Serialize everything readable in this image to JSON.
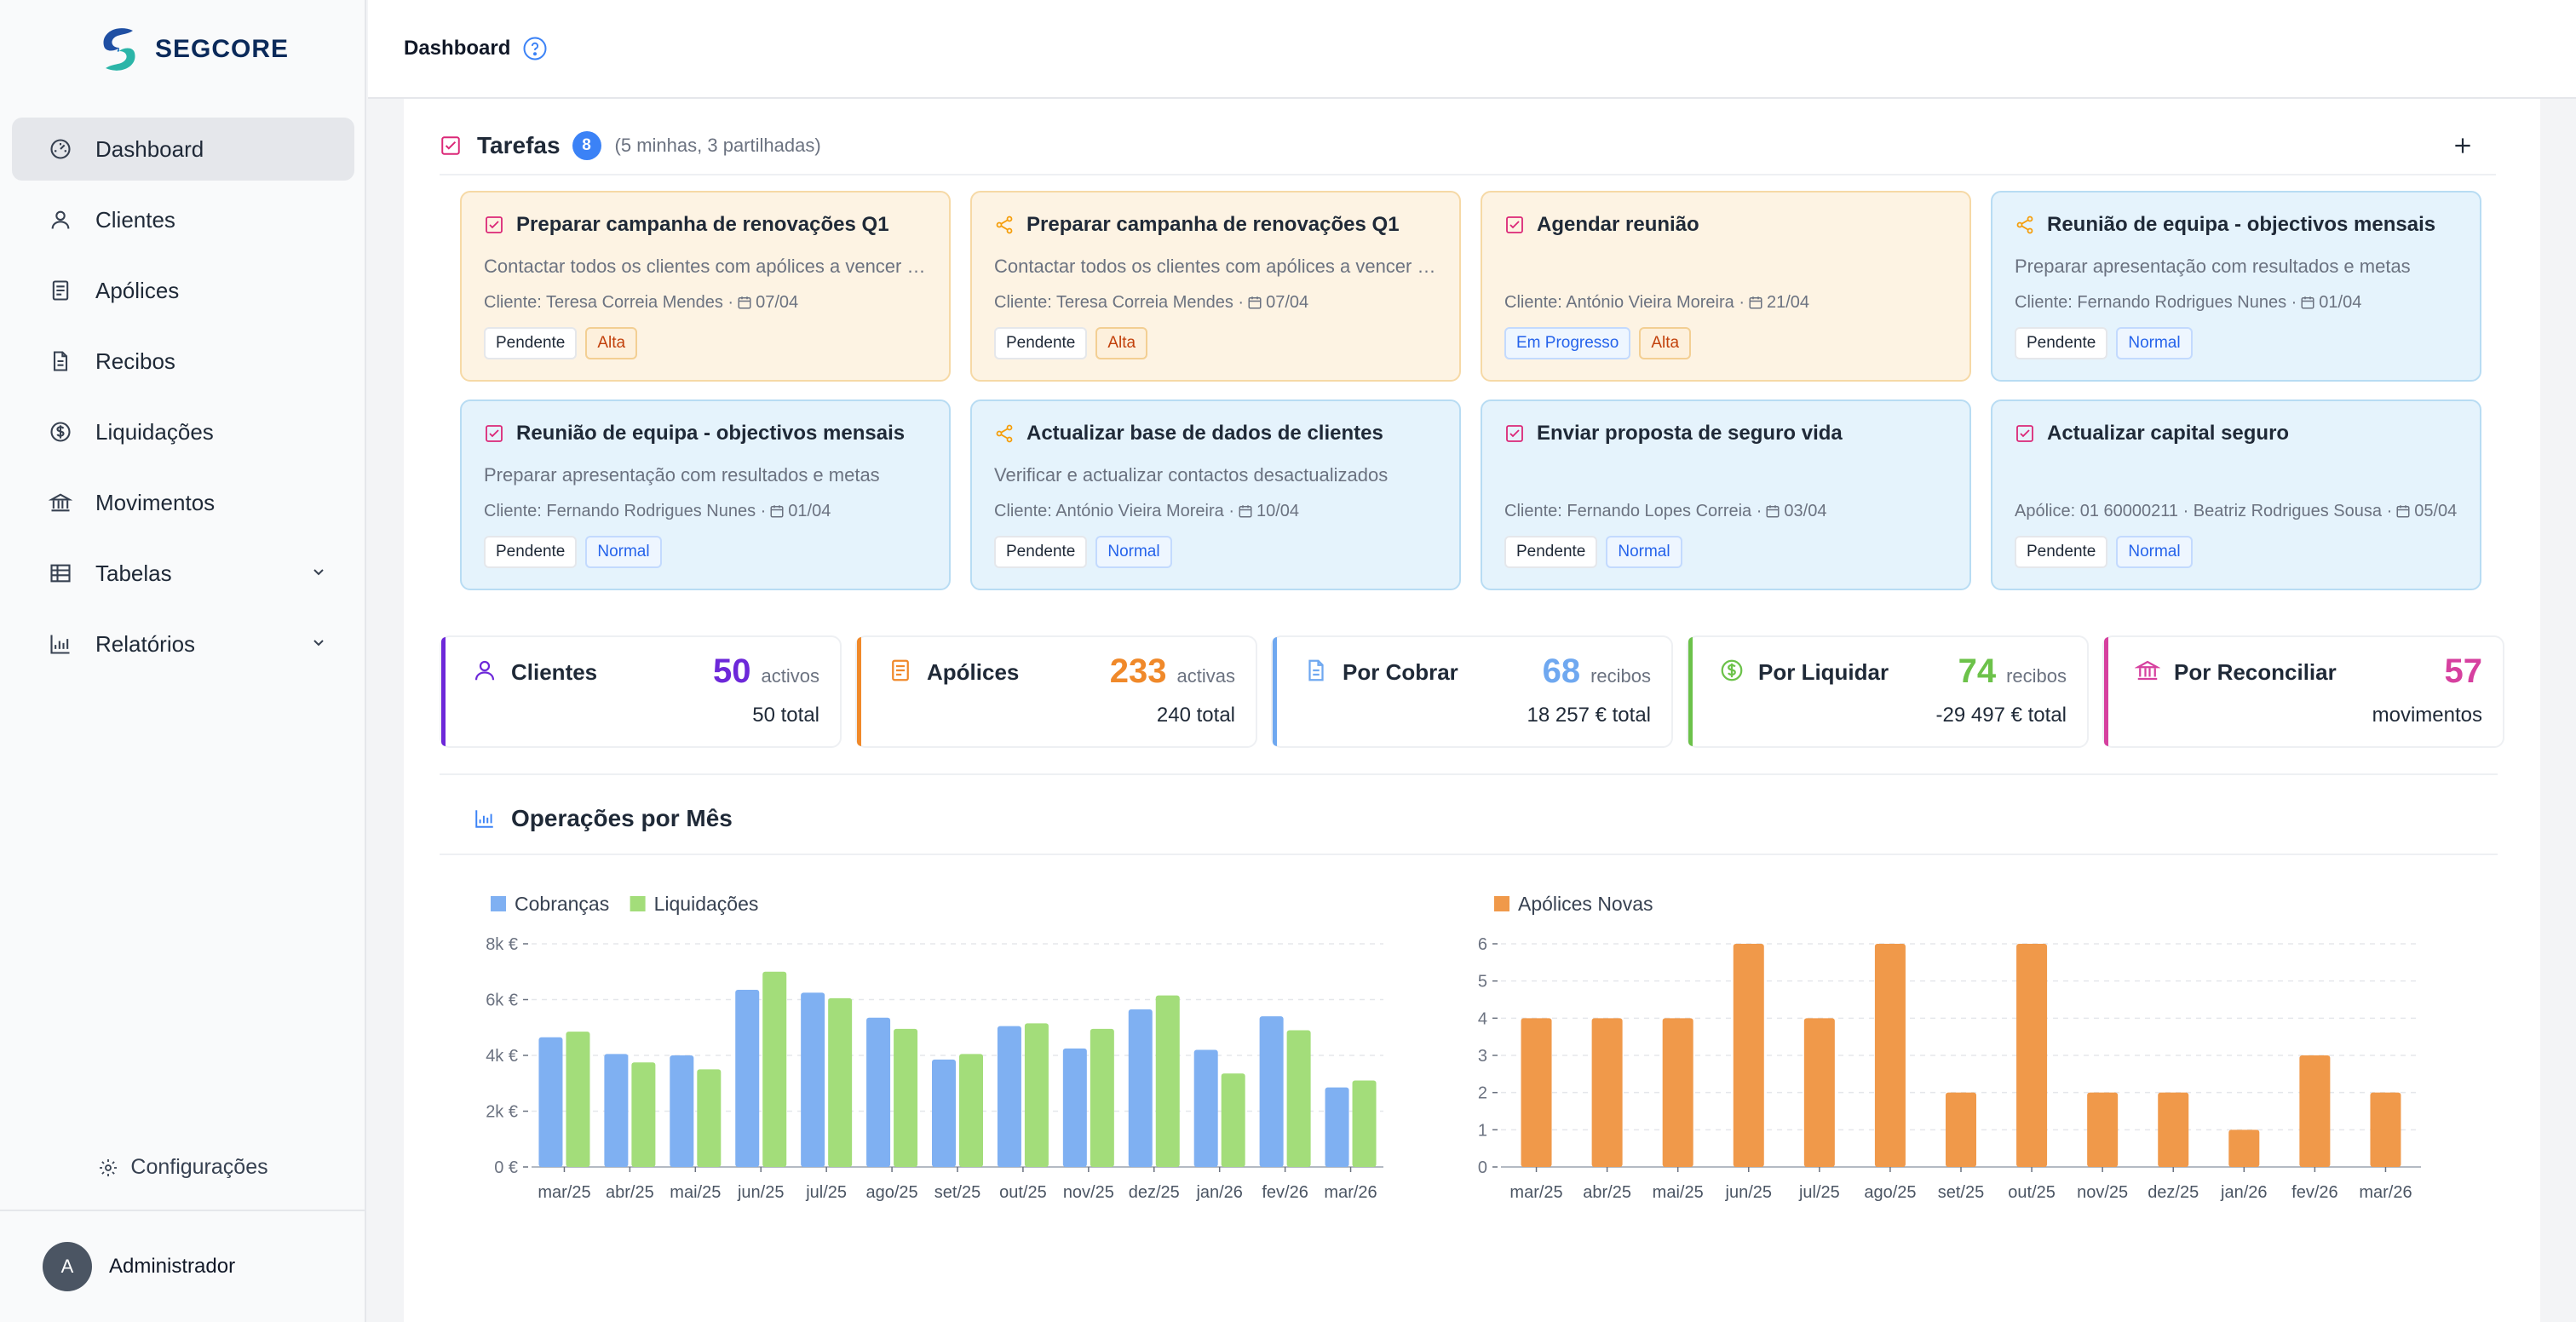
{
  "app": {
    "name": "SEGCORE"
  },
  "topbar": {
    "title": "Dashboard"
  },
  "sidebar": {
    "items": [
      {
        "label": "Dashboard",
        "icon": "gauge-icon",
        "active": true
      },
      {
        "label": "Clientes",
        "icon": "user-icon"
      },
      {
        "label": "Apólices",
        "icon": "policy-icon"
      },
      {
        "label": "Recibos",
        "icon": "receipt-icon"
      },
      {
        "label": "Liquidações",
        "icon": "dollar-circle-icon"
      },
      {
        "label": "Movimentos",
        "icon": "bank-icon"
      },
      {
        "label": "Tabelas",
        "icon": "table-icon",
        "expandable": true
      },
      {
        "label": "Relatórios",
        "icon": "bar-chart-icon",
        "expandable": true
      }
    ],
    "config_label": "Configurações",
    "user": {
      "initial": "A",
      "name": "Administrador"
    }
  },
  "tasks": {
    "title": "Tarefas",
    "count": "8",
    "subtitle": "(5 minhas, 3 partilhadas)",
    "cards": [
      {
        "title": "Preparar campanha de renovações Q1",
        "icon": "checkbox-icon",
        "color": "orange",
        "desc": "Contactar todos os clientes com apólices a vencer no próximo trimestre",
        "meta_prefix": "Cliente: Teresa Correia Mendes ·",
        "date": "07/04",
        "status": "Pendente",
        "priority": "Alta"
      },
      {
        "title": "Preparar campanha de renovações Q1",
        "icon": "share-icon",
        "color": "orange",
        "desc": "Contactar todos os clientes com apólices a vencer no próximo trimestre",
        "meta_prefix": "Cliente: Teresa Correia Mendes ·",
        "date": "07/04",
        "status": "Pendente",
        "priority": "Alta"
      },
      {
        "title": "Agendar reunião",
        "icon": "checkbox-icon",
        "color": "orange",
        "desc": "",
        "meta_prefix": "Cliente: António Vieira Moreira ·",
        "date": "21/04",
        "status": "Em Progresso",
        "priority": "Alta"
      },
      {
        "title": "Reunião de equipa - objectivos mensais",
        "icon": "share-icon",
        "color": "blue",
        "desc": "Preparar apresentação com resultados e metas",
        "meta_prefix": "Cliente: Fernando Rodrigues Nunes ·",
        "date": "01/04",
        "status": "Pendente",
        "priority": "Normal"
      },
      {
        "title": "Reunião de equipa - objectivos mensais",
        "icon": "checkbox-icon",
        "color": "blue",
        "desc": "Preparar apresentação com resultados e metas",
        "meta_prefix": "Cliente: Fernando Rodrigues Nunes ·",
        "date": "01/04",
        "status": "Pendente",
        "priority": "Normal"
      },
      {
        "title": "Actualizar base de dados de clientes",
        "icon": "share-icon",
        "color": "blue",
        "desc": "Verificar e actualizar contactos desactualizados",
        "meta_prefix": "Cliente: António Vieira Moreira ·",
        "date": "10/04",
        "status": "Pendente",
        "priority": "Normal"
      },
      {
        "title": "Enviar proposta de seguro vida",
        "icon": "checkbox-icon",
        "color": "blue",
        "desc": "",
        "meta_prefix": "Cliente: Fernando Lopes Correia ·",
        "date": "03/04",
        "status": "Pendente",
        "priority": "Normal"
      },
      {
        "title": "Actualizar capital seguro",
        "icon": "checkbox-icon",
        "color": "blue",
        "desc": "",
        "meta_prefix": "Apólice: 01 60000211 · Beatriz Rodrigues Sousa ·",
        "date": "05/04",
        "status": "Pendente",
        "priority": "Normal"
      }
    ]
  },
  "stats": [
    {
      "label": "Clientes",
      "value": "50",
      "unit": "activos",
      "total": "50 total",
      "color": "#6d28d9",
      "icon": "user-icon"
    },
    {
      "label": "Apólices",
      "value": "233",
      "unit": "activas",
      "total": "240 total",
      "color": "#f0892a",
      "icon": "policy-icon"
    },
    {
      "label": "Por Cobrar",
      "value": "68",
      "unit": "recibos",
      "total": "18 257 € total",
      "color": "#6fa8f0",
      "icon": "receipt-icon"
    },
    {
      "label": "Por Liquidar",
      "value": "74",
      "unit": "recibos",
      "total": "-29 497 € total",
      "color": "#6cc24a",
      "icon": "dollar-circle-icon"
    },
    {
      "label": "Por Reconciliar",
      "value": "57",
      "unit": "",
      "total": "movimentos",
      "color": "#d6409f",
      "icon": "bank-icon"
    }
  ],
  "operations": {
    "title": "Operações por Mês"
  },
  "chart_data": [
    {
      "type": "bar",
      "categories": [
        "mar/25",
        "abr/25",
        "mai/25",
        "jun/25",
        "jul/25",
        "ago/25",
        "set/25",
        "out/25",
        "nov/25",
        "dez/25",
        "jan/26",
        "fev/26",
        "mar/26"
      ],
      "series": [
        {
          "name": "Cobranças",
          "color": "#7fb0f2",
          "values": [
            4650,
            4050,
            4000,
            6350,
            6250,
            5350,
            3850,
            5050,
            4250,
            5650,
            4200,
            5400,
            2850
          ]
        },
        {
          "name": "Liquidações",
          "color": "#a3dd7a",
          "values": [
            4850,
            3750,
            3500,
            7000,
            6050,
            4950,
            4050,
            5150,
            4950,
            6150,
            3350,
            4900,
            3100
          ]
        }
      ],
      "ylim": [
        0,
        8000
      ],
      "yticks": [
        "0 €",
        "2k €",
        "4k €",
        "6k €",
        "8k €"
      ],
      "grid": true,
      "legend": "top-left"
    },
    {
      "type": "bar",
      "categories": [
        "mar/25",
        "abr/25",
        "mai/25",
        "jun/25",
        "jul/25",
        "ago/25",
        "set/25",
        "out/25",
        "nov/25",
        "dez/25",
        "jan/26",
        "fev/26",
        "mar/26"
      ],
      "series": [
        {
          "name": "Apólices Novas",
          "color": "#f0994a",
          "values": [
            4,
            4,
            4,
            6,
            4,
            6,
            2,
            6,
            2,
            2,
            1,
            3,
            2
          ]
        }
      ],
      "ylim": [
        0,
        6
      ],
      "yticks": [
        "0",
        "1",
        "2",
        "3",
        "4",
        "5",
        "6"
      ],
      "grid": true,
      "legend": "top-left"
    }
  ]
}
